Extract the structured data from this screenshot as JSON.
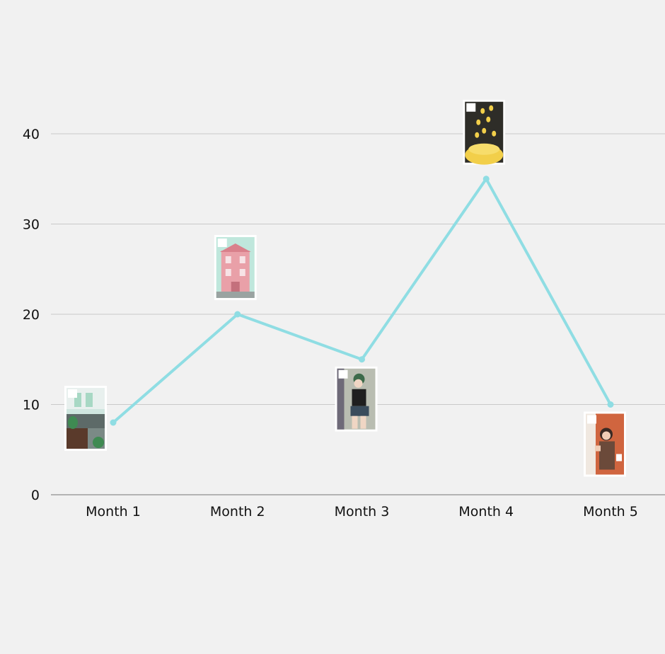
{
  "chart_data": {
    "type": "line",
    "title": "",
    "xlabel": "",
    "ylabel": "",
    "categories": [
      "Month 1",
      "Month 2",
      "Month 3",
      "Month 4",
      "Month 5"
    ],
    "series": [
      {
        "values": [
          8,
          20,
          15,
          35,
          10
        ],
        "color": "#8fdde3"
      }
    ],
    "ylim": [
      0,
      40
    ],
    "yticks": [
      0,
      10,
      20,
      30,
      40
    ],
    "grid": true,
    "legend": "none",
    "point_images": [
      "living-room-card",
      "pink-house-card",
      "woman-posing-card",
      "gold-coins-card",
      "woman-at-door-card"
    ]
  }
}
